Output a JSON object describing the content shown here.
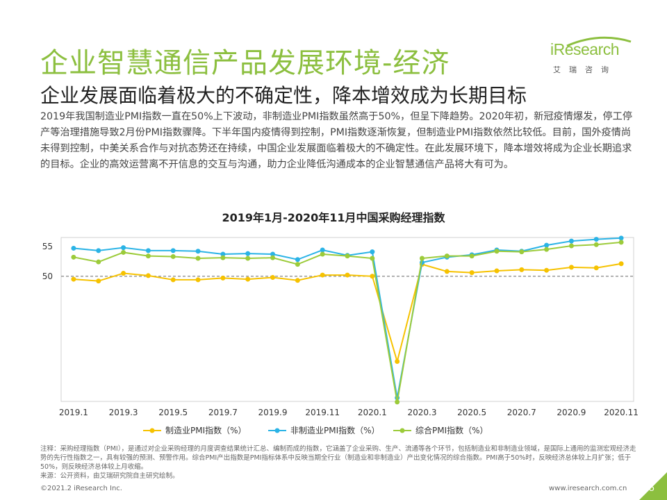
{
  "title": "企业智慧通信产品发展环境-经济",
  "subtitle": "企业发展面临着极大的不确定性，降本增效成为长期目标",
  "body": "2019年我国制造业PMI指数一直在50%上下波动，非制造业PMI指数虽然高于50%，但呈下降趋势。2020年初，新冠疫情爆发，停工停产等治理措施导致2月份PMI指数骤降。下半年国内疫情得到控制，PMI指数逐渐恢复，但制造业PMI指数依然比较低。目前，国外疫情尚未得到控制，中美关系合作与对抗态势还在持续，中国企业发展面临着极大的不确定性。在此发展环境下，降本增效将成为企业长期追求的目标。企业的高效运营离不开信息的交互与沟通，助力企业降低沟通成本的企业智慧通信产品将大有可为。",
  "logo": {
    "name": "iResearch",
    "sub": "艾瑞咨询"
  },
  "colors": {
    "accent": "#8cbf3f",
    "series": [
      "#f6c200",
      "#2ab3e6",
      "#9ccb3a"
    ]
  },
  "chart_data": {
    "type": "line",
    "title": "2019年1月-2020年11月中国采购经理指数",
    "categories": [
      "2019.1",
      "2019.2",
      "2019.3",
      "2019.4",
      "2019.5",
      "2019.6",
      "2019.7",
      "2019.8",
      "2019.9",
      "2019.10",
      "2019.11",
      "2019.12",
      "2020.1",
      "2020.2",
      "2020.3",
      "2020.4",
      "2020.5",
      "2020.6",
      "2020.7",
      "2020.8",
      "2020.9",
      "2020.10",
      "2020.11"
    ],
    "tick_labels": [
      "2019.1",
      "2019.3",
      "2019.5",
      "2019.7",
      "2019.9",
      "2019.11",
      "2020.1",
      "2020.3",
      "2020.5",
      "2020.7",
      "2020.9",
      "2020.11"
    ],
    "ylim": [
      29,
      56.5
    ],
    "y_ticks": [
      50,
      55
    ],
    "reference_line": 50,
    "series": [
      {
        "name": "制造业PMI指数（%）",
        "values": [
          49.5,
          49.2,
          50.5,
          50.1,
          49.4,
          49.4,
          49.7,
          49.5,
          49.8,
          49.3,
          50.2,
          50.2,
          50.0,
          35.7,
          52.0,
          50.8,
          50.6,
          50.9,
          51.1,
          51.0,
          51.5,
          51.4,
          52.1
        ]
      },
      {
        "name": "非制造业PMI指数（%）",
        "values": [
          54.7,
          54.3,
          54.8,
          54.3,
          54.3,
          54.2,
          53.7,
          53.8,
          53.7,
          52.8,
          54.4,
          53.5,
          54.1,
          29.6,
          52.3,
          53.2,
          53.6,
          54.4,
          54.2,
          55.2,
          55.9,
          56.2,
          56.4
        ]
      },
      {
        "name": "综合PMI指数（%）",
        "values": [
          53.2,
          52.4,
          54.0,
          53.4,
          53.3,
          53.0,
          53.1,
          53.0,
          53.1,
          52.0,
          53.7,
          53.4,
          53.0,
          28.9,
          53.0,
          53.4,
          53.4,
          54.2,
          54.1,
          54.5,
          55.1,
          55.3,
          55.7
        ]
      }
    ]
  },
  "notes": [
    "注释：采购经理指数（PMI），是通过对企业采购经理的月度调查结果统计汇总、编制而成的指数，它涵盖了企业采购、生产、流通等各个环节，包括制造业和非制造业领域，是国际上通用的监测宏观经济走势的先行性指数之一，具有较强的预测、预警作用。综合PMI产出指数是PMI指标体系中反映当期全行业（制造业和非制造业）产出变化情况的综合指数。PMI高于50%时，反映经济总体较上月扩张；低于50%，则反映经济总体较上月收缩。",
    "来源：公开资料，由艾瑞研究院自主研究绘制。"
  ],
  "footer": {
    "copyright": "©2021.2 iResearch Inc.",
    "website": "www.iresearch.com.cn",
    "page": "5"
  }
}
